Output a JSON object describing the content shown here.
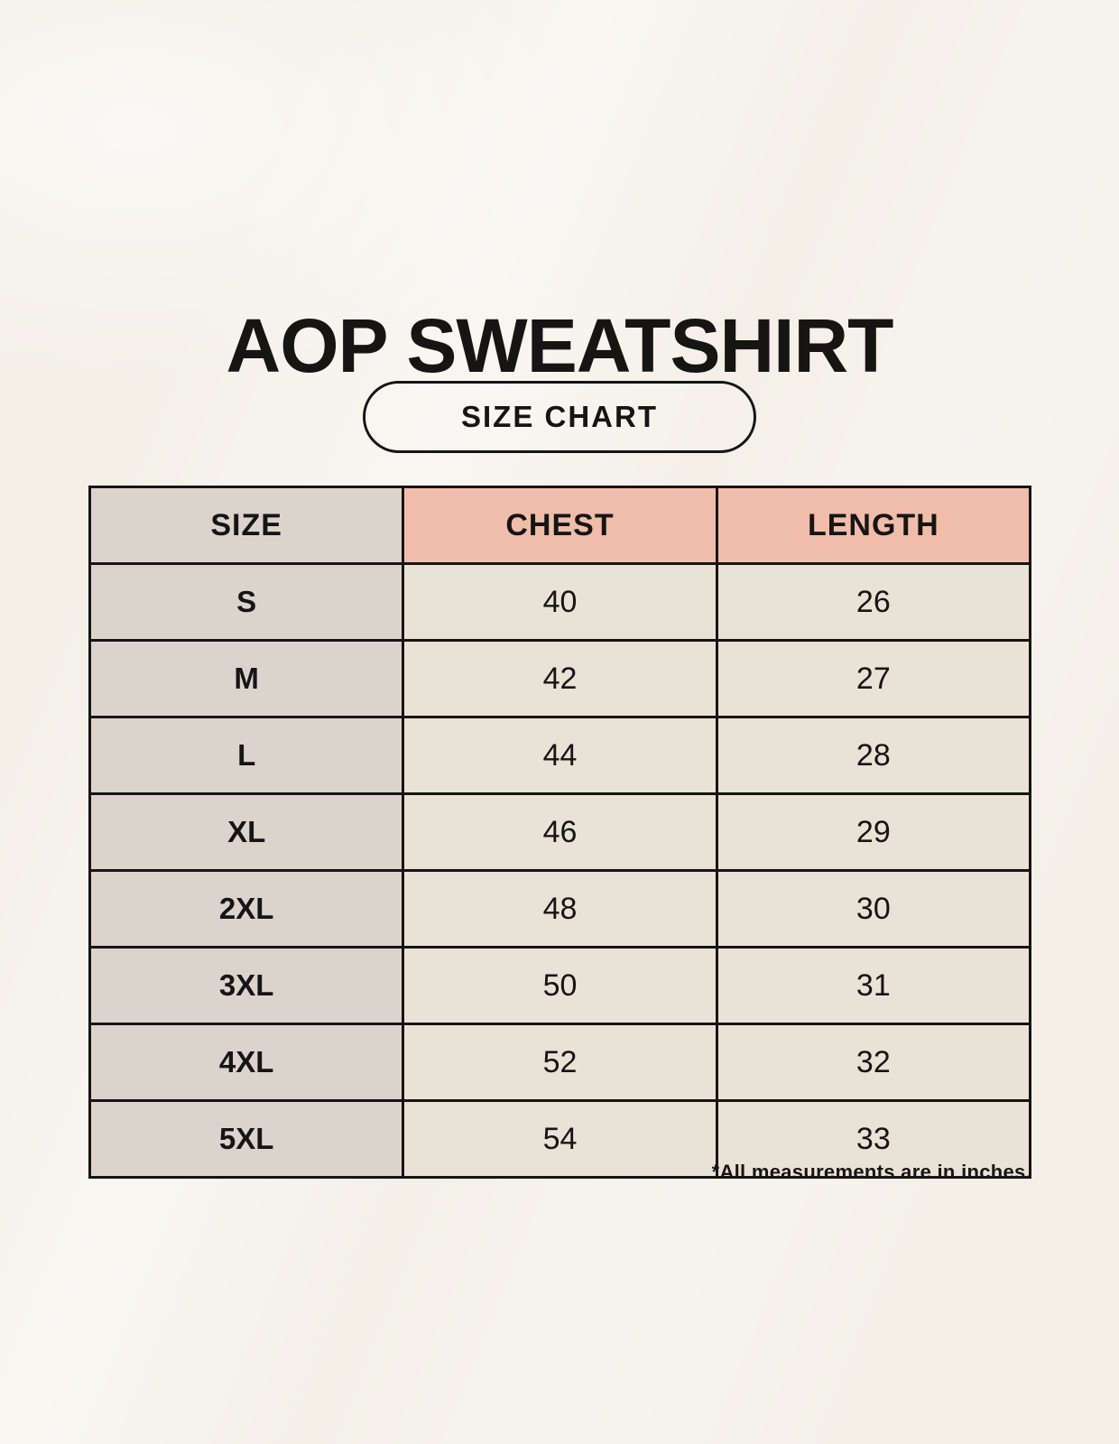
{
  "page": {
    "title": "AOP SWEATSHIRT",
    "badge_label": "SIZE CHART",
    "footnote": "*All measurements are in inches."
  },
  "colors": {
    "background": "#f4f0e8",
    "size_header_bg": "#dbd4cd",
    "measure_header_bg": "#f0bdab",
    "size_cell_bg": "#dbd4cd",
    "value_cell_bg": "#e9e2d6",
    "border": "#171513",
    "text": "#171513"
  },
  "chart_data": {
    "type": "table",
    "title": "AOP SWEATSHIRT",
    "subtitle": "SIZE CHART",
    "columns": [
      "SIZE",
      "CHEST",
      "LENGTH"
    ],
    "rows": [
      [
        "S",
        40,
        26
      ],
      [
        "M",
        42,
        27
      ],
      [
        "L",
        44,
        28
      ],
      [
        "XL",
        46,
        29
      ],
      [
        "2XL",
        48,
        30
      ],
      [
        "3XL",
        50,
        31
      ],
      [
        "4XL",
        52,
        32
      ],
      [
        "5XL",
        54,
        33
      ]
    ],
    "note": "*All measurements are in inches.",
    "units": "inches",
    "layout": {
      "columns_equal_width": true,
      "header_accent_columns": [
        "CHEST",
        "LENGTH"
      ]
    }
  }
}
